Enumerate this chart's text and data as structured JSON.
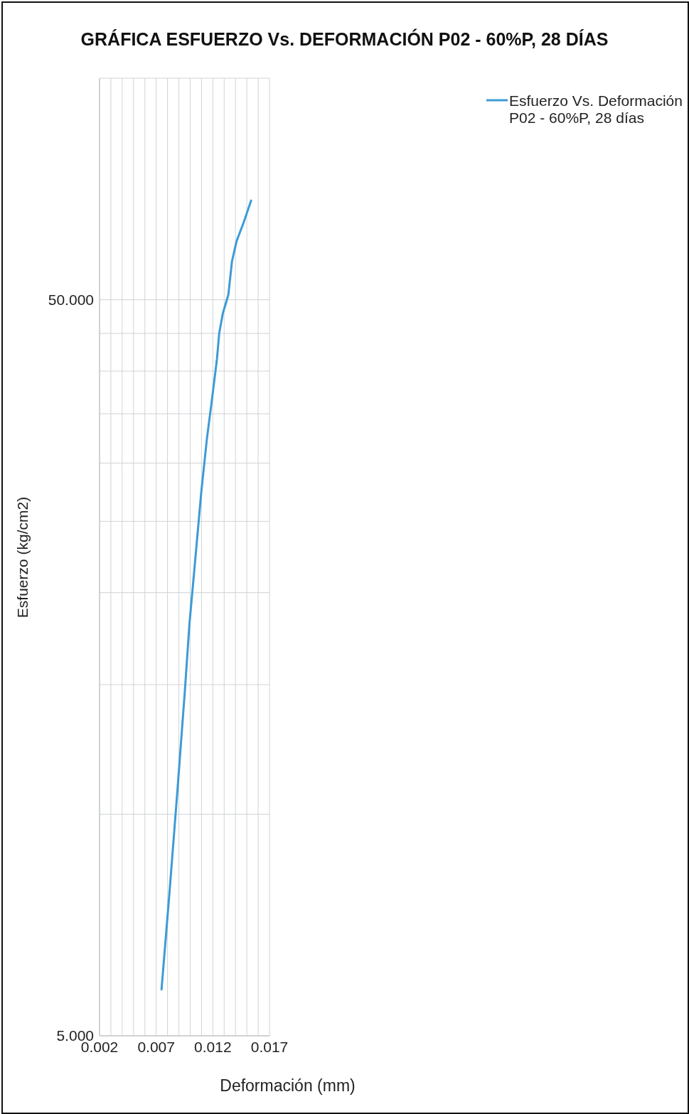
{
  "chart_data": {
    "type": "line",
    "title": "GRÁFICA ESFUERZO Vs. DEFORMACIÓN P02 - 60%P, 28 DÍAS",
    "xlabel": "Deformación (mm)",
    "ylabel": "Esfuerzo (kg/cm2)",
    "x": [
      0.00747,
      0.0082,
      0.00888,
      0.00953,
      0.00993,
      0.01045,
      0.01098,
      0.01147,
      0.01199,
      0.01236,
      0.01256,
      0.01288,
      0.01337,
      0.01369,
      0.0141,
      0.01474,
      0.01538
    ],
    "series": [
      {
        "name": "Esfuerzo Vs. Deformación P02 - 60%P, 28 días",
        "color": "#3d9bd6",
        "values": [
          5.78,
          7.92,
          10.8,
          14.7,
          18.1,
          22.2,
          27.4,
          32.3,
          37.3,
          41.5,
          45,
          47.9,
          50.8,
          56.4,
          60.1,
          63.8,
          68.2
        ]
      }
    ],
    "xlim": [
      0.002,
      0.017
    ],
    "xticks": [
      0.002,
      {
        "value": 0.003,
        "label": null
      },
      {
        "value": 0.004,
        "label": null
      },
      {
        "value": 0.005,
        "label": null
      },
      {
        "value": 0.006,
        "label": null
      },
      0.007,
      {
        "value": 0.008,
        "label": null
      },
      {
        "value": 0.009,
        "label": null
      },
      {
        "value": 0.01,
        "label": null
      },
      {
        "value": 0.011,
        "label": null
      },
      0.012,
      {
        "value": 0.013,
        "label": null
      },
      {
        "value": 0.014,
        "label": null
      },
      {
        "value": 0.015,
        "label": null
      },
      {
        "value": 0.016,
        "label": null
      },
      0.017
    ],
    "ylim": [
      5,
      100
    ],
    "yticks": [
      {
        "value": 5,
        "label": "5.000"
      },
      {
        "value": 10,
        "label": null
      },
      {
        "value": 15,
        "label": null
      },
      {
        "value": 20,
        "label": null
      },
      {
        "value": 25,
        "label": null
      },
      {
        "value": 30,
        "label": null
      },
      {
        "value": 35,
        "label": null
      },
      {
        "value": 40,
        "label": null
      },
      {
        "value": 45,
        "label": null
      },
      {
        "value": 50,
        "label": "50.000"
      },
      {
        "value": 100,
        "label": null
      }
    ],
    "log": "y",
    "grid": true,
    "legend": "right"
  }
}
